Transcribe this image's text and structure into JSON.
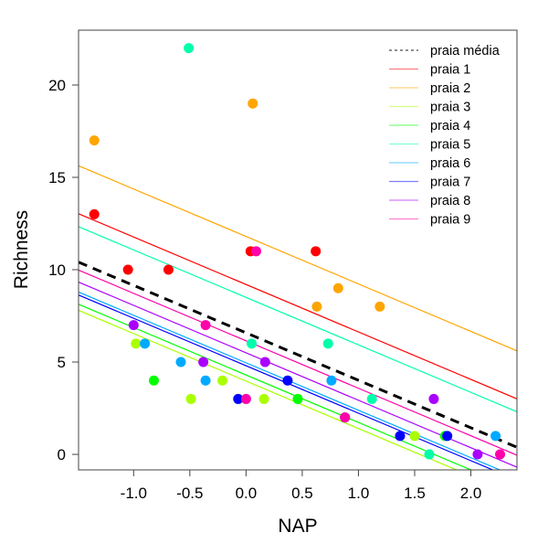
{
  "chart_data": {
    "type": "scatter",
    "title": "",
    "xlabel": "NAP",
    "ylabel": "Richness",
    "xlim": [
      -1.49,
      2.41
    ],
    "ylim": [
      -0.84,
      22.97
    ],
    "xticks": [
      -1.0,
      -0.5,
      0.0,
      0.5,
      1.0,
      1.5,
      2.0
    ],
    "xtick_labels": [
      "-1.0",
      "-0.5",
      "0.0",
      "0.5",
      "1.0",
      "1.5",
      "2.0"
    ],
    "yticks": [
      0,
      5,
      10,
      15,
      20
    ],
    "ytick_labels": [
      "0",
      "5",
      "10",
      "15",
      "20"
    ],
    "grid": false,
    "legend_position": "top-right",
    "slope": -2.57,
    "mean_line": {
      "name": "praia média",
      "intercept": 6.58,
      "color": "#000000"
    },
    "series": [
      {
        "name": "praia 1",
        "color": "#FF0000",
        "intercept": 9.2,
        "points": [
          [
            -1.35,
            13
          ],
          [
            -1.05,
            10
          ],
          [
            -0.69,
            10
          ],
          [
            0.04,
            11
          ],
          [
            0.62,
            11
          ]
        ]
      },
      {
        "name": "praia 2",
        "color": "#FFA500",
        "intercept": 11.8,
        "points": [
          [
            -1.35,
            17
          ],
          [
            0.06,
            19
          ],
          [
            0.63,
            8
          ],
          [
            0.82,
            9
          ],
          [
            1.19,
            8
          ]
        ]
      },
      {
        "name": "praia 3",
        "color": "#AAFF00",
        "intercept": 3.97,
        "points": [
          [
            -0.98,
            6
          ],
          [
            -0.49,
            3
          ],
          [
            -0.21,
            4
          ],
          [
            0.16,
            3
          ],
          [
            1.5,
            1
          ]
        ]
      },
      {
        "name": "praia 4",
        "color": "#00FF00",
        "intercept": 4.3,
        "points": [
          [
            -0.82,
            4
          ],
          [
            0.46,
            3
          ],
          [
            1.77,
            1
          ]
        ]
      },
      {
        "name": "praia 5",
        "color": "#00FFAA",
        "intercept": 8.5,
        "points": [
          [
            -0.51,
            22
          ],
          [
            0.05,
            6
          ],
          [
            0.73,
            6
          ],
          [
            1.12,
            3
          ],
          [
            1.63,
            0
          ]
        ]
      },
      {
        "name": "praia 6",
        "color": "#00AAFF",
        "intercept": 4.96,
        "points": [
          [
            -0.9,
            6
          ],
          [
            -0.58,
            5
          ],
          [
            -0.36,
            4
          ],
          [
            0.76,
            4
          ],
          [
            2.22,
            1
          ]
        ]
      },
      {
        "name": "praia 7",
        "color": "#0000FF",
        "intercept": 4.8,
        "points": [
          [
            -0.07,
            3
          ],
          [
            0.37,
            4
          ],
          [
            0.88,
            2
          ],
          [
            1.37,
            1
          ],
          [
            1.79,
            1
          ]
        ]
      },
      {
        "name": "praia 8",
        "color": "#AA00FF",
        "intercept": 5.5,
        "points": [
          [
            -1.0,
            7
          ],
          [
            -0.38,
            5
          ],
          [
            0.17,
            5
          ],
          [
            1.67,
            3
          ],
          [
            2.06,
            0
          ]
        ]
      },
      {
        "name": "praia 9",
        "color": "#FF00AA",
        "intercept": 6.15,
        "points": [
          [
            0.09,
            11
          ],
          [
            -0.36,
            7
          ],
          [
            0.0,
            3
          ],
          [
            0.88,
            2
          ],
          [
            2.26,
            0
          ]
        ]
      }
    ]
  }
}
